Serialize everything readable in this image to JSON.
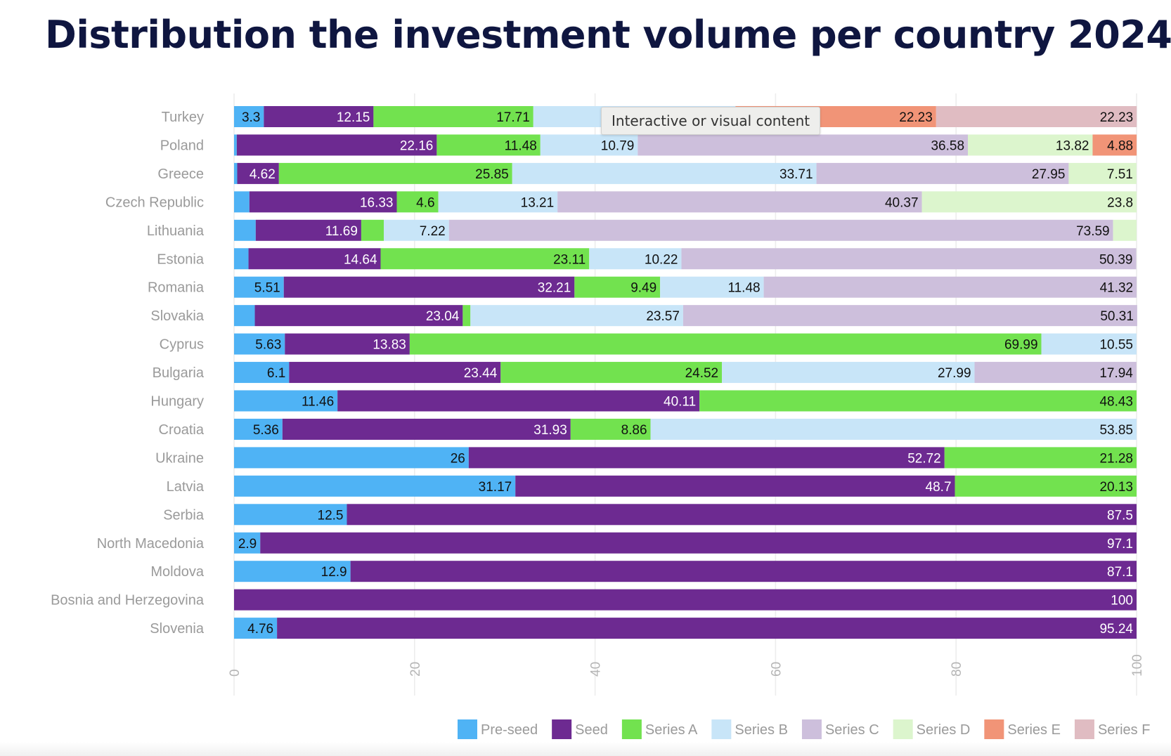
{
  "title": "Distribution the investment volume per country 2024",
  "tooltip": "Interactive or visual content",
  "chart_data": {
    "type": "bar",
    "orientation": "horizontal",
    "stacked": true,
    "title": "Distribution the investment volume per country 2024",
    "xlim": [
      0,
      100
    ],
    "xticks": [
      "0",
      "20",
      "40",
      "60",
      "80",
      "100"
    ],
    "grid": true,
    "legend_position": "bottom-right",
    "categories": [
      "Turkey",
      "Poland",
      "Greece",
      "Czech Republic",
      "Lithuania",
      "Estonia",
      "Romania",
      "Slovakia",
      "Cyprus",
      "Bulgaria",
      "Hungary",
      "Croatia",
      "Ukraine",
      "Latvia",
      "Serbia",
      "North Macedonia",
      "Moldova",
      "Bosnia and Herzegovina",
      "Slovenia"
    ],
    "series": [
      {
        "name": "Pre-seed",
        "color": "#4fb3f5",
        "label_color": "#111111",
        "values": [
          3.3,
          0.3,
          0.35,
          1.7,
          2.4,
          1.6,
          5.51,
          2.3,
          5.63,
          6.1,
          11.46,
          5.36,
          26,
          31.17,
          12.5,
          2.9,
          12.9,
          0,
          4.76
        ],
        "labels": [
          "3.3",
          "",
          "",
          "",
          "",
          "",
          "5.51",
          "",
          "5.63",
          "6.1",
          "11.46",
          "5.36",
          "26",
          "31.17",
          "12.5",
          "2.9",
          "12.9",
          "",
          "4.76"
        ]
      },
      {
        "name": "Seed",
        "color": "#6d2a91",
        "label_color": "#ffffff",
        "values": [
          12.15,
          22.16,
          4.62,
          16.33,
          11.69,
          14.64,
          32.21,
          23.04,
          13.83,
          23.44,
          40.11,
          31.93,
          52.72,
          48.7,
          87.5,
          97.1,
          87.1,
          100,
          95.24
        ],
        "labels": [
          "12.15",
          "22.16",
          "4.62",
          "16.33",
          "11.69",
          "14.64",
          "32.21",
          "23.04",
          "13.83",
          "23.44",
          "40.11",
          "31.93",
          "52.72",
          "48.7",
          "87.5",
          "97.1",
          "87.1",
          "100",
          "95.24"
        ]
      },
      {
        "name": "Series A",
        "color": "#72e24f",
        "label_color": "#111111",
        "values": [
          17.71,
          11.48,
          25.85,
          4.6,
          2.5,
          23.11,
          9.49,
          0.85,
          69.99,
          24.52,
          48.43,
          8.86,
          21.28,
          20.13,
          0,
          0,
          0,
          0,
          0
        ],
        "labels": [
          "17.71",
          "11.48",
          "25.85",
          "4.6",
          "",
          "23.11",
          "9.49",
          "",
          "69.99",
          "24.52",
          "48.43",
          "8.86",
          "21.28",
          "20.13",
          "",
          "",
          "",
          "",
          ""
        ]
      },
      {
        "name": "Series B",
        "color": "#c8e5f8",
        "label_color": "#111111",
        "values": [
          22.4,
          10.79,
          33.71,
          13.21,
          7.22,
          10.22,
          11.48,
          23.57,
          10.55,
          27.99,
          0,
          53.85,
          0,
          0,
          0,
          0,
          0,
          0,
          0
        ],
        "labels": [
          "",
          "10.79",
          "33.71",
          "13.21",
          "7.22",
          "10.22",
          "11.48",
          "23.57",
          "10.55",
          "27.99",
          "",
          "53.85",
          "",
          "",
          "",
          "",
          "",
          "",
          ""
        ]
      },
      {
        "name": "Series C",
        "color": "#cdbfdc",
        "label_color": "#111111",
        "values": [
          0,
          36.58,
          27.95,
          40.37,
          73.59,
          50.39,
          41.32,
          50.31,
          0,
          17.94,
          0,
          0,
          0,
          0,
          0,
          0,
          0,
          0,
          0
        ],
        "labels": [
          "",
          "36.58",
          "27.95",
          "40.37",
          "73.59",
          "50.39",
          "41.32",
          "50.31",
          "",
          "17.94",
          "",
          "",
          "",
          "",
          "",
          "",
          "",
          "",
          ""
        ]
      },
      {
        "name": "Series D",
        "color": "#dcf5cd",
        "label_color": "#111111",
        "values": [
          0,
          13.82,
          7.51,
          23.8,
          2.6,
          0,
          0,
          0,
          0,
          0,
          0,
          0,
          0,
          0,
          0,
          0,
          0,
          0,
          0
        ],
        "labels": [
          "",
          "13.82",
          "7.51",
          "23.8",
          "",
          "",
          "",
          "",
          "",
          "",
          "",
          "",
          "",
          "",
          "",
          "",
          "",
          "",
          ""
        ]
      },
      {
        "name": "Series E",
        "color": "#f19477",
        "label_color": "#111111",
        "values": [
          22.23,
          4.88,
          0,
          0,
          0,
          0,
          0,
          0,
          0,
          0,
          0,
          0,
          0,
          0,
          0,
          0,
          0,
          0,
          0
        ],
        "labels": [
          "22.23",
          "4.88",
          "",
          "",
          "",
          "",
          "",
          "",
          "",
          "",
          "",
          "",
          "",
          "",
          "",
          "",
          "",
          "",
          ""
        ]
      },
      {
        "name": "Series F",
        "color": "#e0bcc2",
        "label_color": "#111111",
        "values": [
          22.23,
          0,
          0,
          0,
          0,
          0,
          0,
          0,
          0,
          0,
          0,
          0,
          0,
          0,
          0,
          0,
          0,
          0,
          0
        ],
        "labels": [
          "22.23",
          "",
          "",
          "",
          "",
          "",
          "",
          "",
          "",
          "",
          "",
          "",
          "",
          "",
          "",
          "",
          "",
          "",
          ""
        ]
      }
    ]
  }
}
